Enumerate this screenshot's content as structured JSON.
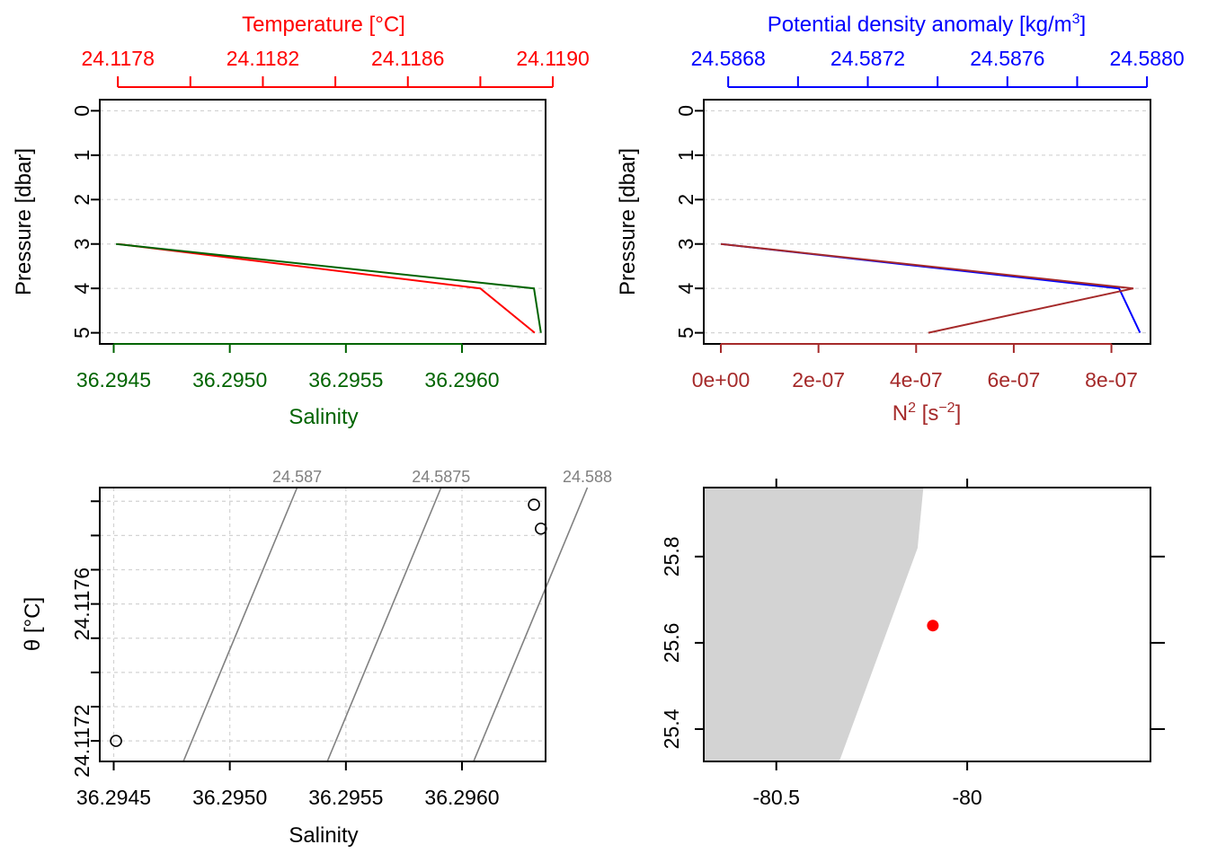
{
  "colors": {
    "temperature": "#ff0000",
    "salinity": "#006400",
    "density": "#0000ff",
    "n2": "#a52a2a",
    "isopycnal": "#808080",
    "grid": "#d3d3d3",
    "land": "#d3d3d3",
    "station": "#ff0000"
  },
  "chart_data": [
    {
      "panel": "profile-ts",
      "type": "line",
      "yaxis": {
        "label": "Pressure [dbar]",
        "ticks": [
          "0",
          "1",
          "2",
          "3",
          "4",
          "5"
        ],
        "range": [
          5.25,
          -0.25
        ]
      },
      "top_axis": {
        "label": "Temperature [°C]",
        "ticks": [
          "24.1178",
          "24.1182",
          "24.1186",
          "24.1190"
        ],
        "range": [
          24.11775,
          24.11898
        ]
      },
      "bottom_axis": {
        "label": "Salinity",
        "ticks": [
          "36.2945",
          "36.2950",
          "36.2955",
          "36.2960"
        ],
        "range": [
          36.29444,
          36.29636
        ]
      },
      "grid": true,
      "series": [
        {
          "name": "Temperature",
          "axis": "top",
          "pressure": [
            3,
            4,
            5
          ],
          "values": [
            24.1178,
            24.1188,
            24.11895
          ]
        },
        {
          "name": "Salinity",
          "axis": "bottom",
          "pressure": [
            3,
            4,
            5
          ],
          "values": [
            36.29451,
            36.29631,
            36.29634
          ]
        }
      ]
    },
    {
      "panel": "profile-density-n2",
      "type": "line",
      "yaxis": {
        "label": "Pressure [dbar]",
        "ticks": [
          "0",
          "1",
          "2",
          "3",
          "4",
          "5"
        ],
        "range": [
          5.25,
          -0.25
        ]
      },
      "top_axis": {
        "label_main": "Potential density anomaly [kg/m",
        "label_sup": "3",
        "label_end": "]",
        "ticks": [
          "24.5868",
          "24.5872",
          "24.5876",
          "24.5880"
        ],
        "range": [
          24.58673,
          24.58801
        ]
      },
      "bottom_axis": {
        "label_main": "N",
        "label_sup": "2",
        "label_mid": " [s",
        "label_sup2": "−2",
        "label_end": "]",
        "ticks": [
          "0e+00",
          "2e-07",
          "4e-07",
          "6e-07",
          "8e-07"
        ],
        "range": [
          -3.5e-08,
          8.8e-07
        ]
      },
      "grid": true,
      "series": [
        {
          "name": "Potential density anomaly",
          "axis": "top",
          "pressure": [
            3,
            4,
            5
          ],
          "values": [
            24.58678,
            24.58792,
            24.58798
          ]
        },
        {
          "name": "N²",
          "axis": "bottom",
          "pressure": [
            3,
            4,
            5
          ],
          "values": [
            0.0,
            8.45e-07,
            4.25e-07
          ]
        }
      ]
    },
    {
      "panel": "ts-diagram",
      "type": "scatter",
      "xaxis": {
        "label": "Salinity",
        "ticks": [
          "36.2945",
          "36.2950",
          "36.2955",
          "36.2960"
        ],
        "range": [
          36.29444,
          36.29636
        ]
      },
      "yaxis": {
        "label": "θ [°C]",
        "ticks": [
          "24.1172",
          "24.1176"
        ],
        "range": [
          24.11714,
          24.11794
        ]
      },
      "grid": true,
      "isopycnal_labels": [
        "24.587",
        "24.5875",
        "24.588"
      ],
      "points": [
        {
          "x": 36.29451,
          "y": 24.1172
        },
        {
          "x": 36.29631,
          "y": 24.11789
        },
        {
          "x": 36.29634,
          "y": 24.11782
        }
      ]
    },
    {
      "panel": "map",
      "type": "scatter",
      "xaxis": {
        "ticks": [
          "-80.5",
          "-80"
        ],
        "range": [
          -80.69,
          -79.52
        ]
      },
      "yaxis": {
        "ticks": [
          "25.4",
          "25.6",
          "25.8"
        ],
        "range": [
          25.325,
          25.96
        ]
      },
      "station": {
        "lon": -80.09,
        "lat": 25.64
      },
      "coastline": [
        [
          -80.69,
          25.96
        ],
        [
          -80.115,
          25.96
        ],
        [
          -80.13,
          25.82
        ],
        [
          -80.335,
          25.325
        ],
        [
          -80.69,
          25.325
        ]
      ]
    }
  ]
}
